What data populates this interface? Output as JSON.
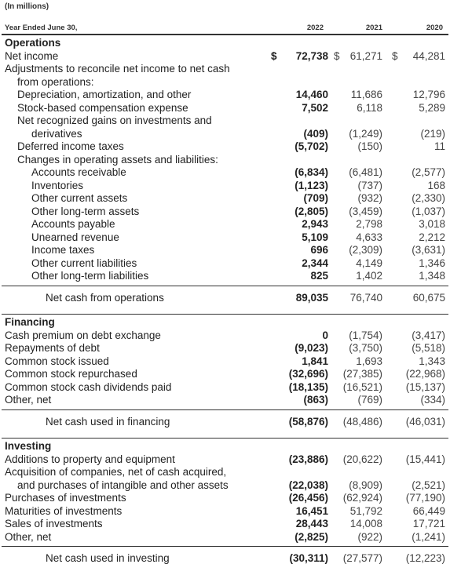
{
  "units_note": "(In millions)",
  "header": {
    "label": "Year Ended June 30,",
    "years": [
      "2022",
      "2021",
      "2020"
    ]
  },
  "currency_symbol": "$",
  "operations": {
    "title": "Operations",
    "rows": [
      {
        "label": "Net income",
        "values": [
          "72,738",
          "61,271",
          "44,281"
        ],
        "dollar": true
      },
      {
        "label": "Adjustments to reconcile net income to net cash"
      },
      {
        "label": "from operations:",
        "indent": 1
      },
      {
        "label": "Depreciation, amortization, and other",
        "indent": 1,
        "values": [
          "14,460",
          "11,686",
          "12,796"
        ]
      },
      {
        "label": "Stock-based compensation expense",
        "indent": 1,
        "values": [
          "7,502",
          "6,118",
          "5,289"
        ]
      },
      {
        "label": "Net recognized gains on investments and",
        "indent": 1
      },
      {
        "label": "derivatives",
        "indent": 2,
        "values": [
          "(409)",
          "(1,249)",
          "(219)"
        ]
      },
      {
        "label": "Deferred income taxes",
        "indent": 1,
        "values": [
          "(5,702)",
          "(150)",
          "11"
        ]
      },
      {
        "label": "Changes in operating assets and liabilities:",
        "indent": 1
      },
      {
        "label": "Accounts receivable",
        "indent": 2,
        "values": [
          "(6,834)",
          "(6,481)",
          "(2,577)"
        ]
      },
      {
        "label": "Inventories",
        "indent": 2,
        "values": [
          "(1,123)",
          "(737)",
          "168"
        ]
      },
      {
        "label": "Other current assets",
        "indent": 2,
        "values": [
          "(709)",
          "(932)",
          "(2,330)"
        ]
      },
      {
        "label": "Other long-term assets",
        "indent": 2,
        "values": [
          "(2,805)",
          "(3,459)",
          "(1,037)"
        ]
      },
      {
        "label": "Accounts payable",
        "indent": 2,
        "values": [
          "2,943",
          "2,798",
          "3,018"
        ]
      },
      {
        "label": "Unearned revenue",
        "indent": 2,
        "values": [
          "5,109",
          "4,633",
          "2,212"
        ]
      },
      {
        "label": "Income taxes",
        "indent": 2,
        "values": [
          "696",
          "(2,309)",
          "(3,631)"
        ]
      },
      {
        "label": "Other current liabilities",
        "indent": 2,
        "values": [
          "2,344",
          "4,149",
          "1,346"
        ]
      },
      {
        "label": "Other long-term liabilities",
        "indent": 2,
        "values": [
          "825",
          "1,402",
          "1,348"
        ]
      }
    ],
    "total": {
      "label": "Net cash from operations",
      "values": [
        "89,035",
        "76,740",
        "60,675"
      ]
    }
  },
  "financing": {
    "title": "Financing",
    "rows": [
      {
        "label": "Cash premium on debt exchange",
        "values": [
          "0",
          "(1,754)",
          "(3,417)"
        ]
      },
      {
        "label": "Repayments of debt",
        "values": [
          "(9,023)",
          "(3,750)",
          "(5,518)"
        ]
      },
      {
        "label": "Common stock issued",
        "values": [
          "1,841",
          "1,693",
          "1,343"
        ]
      },
      {
        "label": "Common stock repurchased",
        "values": [
          "(32,696)",
          "(27,385)",
          "(22,968)"
        ]
      },
      {
        "label": "Common stock cash dividends paid",
        "values": [
          "(18,135)",
          "(16,521)",
          "(15,137)"
        ]
      },
      {
        "label": "Other, net",
        "values": [
          "(863)",
          "(769)",
          "(334)"
        ]
      }
    ],
    "total": {
      "label": "Net cash used in financing",
      "values": [
        "(58,876)",
        "(48,486)",
        "(46,031)"
      ]
    }
  },
  "investing": {
    "title": "Investing",
    "rows": [
      {
        "label": "Additions to property and equipment",
        "values": [
          "(23,886)",
          "(20,622)",
          "(15,441)"
        ]
      },
      {
        "label": "Acquisition of companies, net of cash acquired,"
      },
      {
        "label": "and purchases of intangible and other assets",
        "indent": 1,
        "values": [
          "(22,038)",
          "(8,909)",
          "(2,521)"
        ]
      },
      {
        "label": "Purchases of investments",
        "values": [
          "(26,456)",
          "(62,924)",
          "(77,190)"
        ]
      },
      {
        "label": "Maturities of investments",
        "values": [
          "16,451",
          "51,792",
          "66,449"
        ]
      },
      {
        "label": "Sales of investments",
        "values": [
          "28,443",
          "14,008",
          "17,721"
        ]
      },
      {
        "label": "Other, net",
        "values": [
          "(2,825)",
          "(922)",
          "(1,241)"
        ]
      }
    ],
    "total": {
      "label": "Net cash used in investing",
      "values": [
        "(30,311)",
        "(27,577)",
        "(12,223)"
      ]
    }
  }
}
